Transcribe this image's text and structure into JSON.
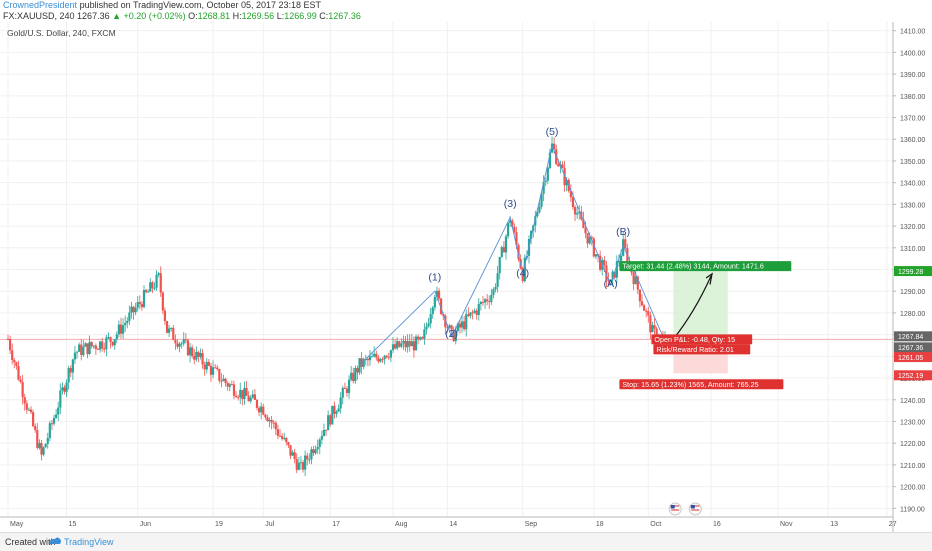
{
  "header": {
    "author": "CrownedPresident",
    "published_text": "published on TradingView.com, October 05, 2017 23:18 EST",
    "symbol": "FX:XAUUSD, 240",
    "last_price": "1267.36",
    "change": "▲ +0.20 (+0.02%)",
    "open_label": "O:",
    "open": "1268.81",
    "high_label": "H:",
    "high": "1269.56",
    "low_label": "L:",
    "low": "1266.99",
    "close_label": "C:",
    "close": "1267.36"
  },
  "chart_title": "Gold/U.S. Dollar, 240, FXCM",
  "footer": {
    "created_with": "Created with",
    "brand": "TradingView"
  },
  "colors": {
    "up": "#26a69a",
    "down": "#ef5350",
    "wave": "#5a8fd8",
    "accent": "#3a8fd4"
  },
  "chart_data": {
    "type": "candlestick",
    "ylim": [
      1186,
      1414
    ],
    "y_ticks": [
      1190,
      1200,
      1210,
      1220,
      1230,
      1240,
      1250,
      1260,
      1270,
      1280,
      1290,
      1300,
      1310,
      1320,
      1330,
      1340,
      1350,
      1360,
      1370,
      1380,
      1390,
      1400,
      1410
    ],
    "x_ticks": [
      "May",
      "15",
      "Jun",
      "19",
      "Jul",
      "17",
      "Aug",
      "14",
      "Sep",
      "18",
      "Oct",
      "16",
      "Nov",
      "13",
      "27"
    ],
    "price_path": [
      {
        "x": "May 1",
        "y": 1268
      },
      {
        "x": "May 9",
        "y": 1214
      },
      {
        "x": "May 17",
        "y": 1262
      },
      {
        "x": "May 26",
        "y": 1268
      },
      {
        "x": "Jun 6",
        "y": 1296
      },
      {
        "x": "Jun 8",
        "y": 1272
      },
      {
        "x": "Jun 22",
        "y": 1248
      },
      {
        "x": "Jul 1",
        "y": 1236
      },
      {
        "x": "Jul 10",
        "y": 1208
      },
      {
        "x": "Jul 24",
        "y": 1256
      },
      {
        "x": "Aug 3",
        "y": 1265
      },
      {
        "x": "Aug 8",
        "y": 1266
      },
      {
        "x": "Aug 11",
        "y": 1290
      },
      {
        "x": "Aug 15",
        "y": 1269
      },
      {
        "x": "Aug 25",
        "y": 1290
      },
      {
        "x": "Aug 29",
        "y": 1324
      },
      {
        "x": "Sep 1",
        "y": 1298
      },
      {
        "x": "Sep 8",
        "y": 1357
      },
      {
        "x": "Sep 15",
        "y": 1321
      },
      {
        "x": "Sep 22",
        "y": 1293
      },
      {
        "x": "Sep 25",
        "y": 1311
      },
      {
        "x": "Oct 2",
        "y": 1271
      },
      {
        "x": "Oct 5",
        "y": 1267
      }
    ],
    "wave_labels": [
      {
        "label": "(1)",
        "x": "Aug 11",
        "y": 1293
      },
      {
        "label": "(2)",
        "x": "Aug 15",
        "y": 1267
      },
      {
        "label": "(3)",
        "x": "Aug 29",
        "y": 1327
      },
      {
        "label": "(4)",
        "x": "Sep 1",
        "y": 1295
      },
      {
        "label": "(5)",
        "x": "Sep 8",
        "y": 1360
      },
      {
        "label": "(A)",
        "x": "Sep 22",
        "y": 1290
      },
      {
        "label": "(B)",
        "x": "Sep 25",
        "y": 1314
      },
      {
        "label": "(C)",
        "x": "Oct 5",
        "y": 1264
      }
    ],
    "position": {
      "entry": 1267.84,
      "target_price": 1299.28,
      "stop_price": 1252.19,
      "target_text": "Target: 31.44 (2.48%) 3144, Amount: 1471.6",
      "pnl_text": "Open P&L: -0.48, Qty: 15",
      "rr_text": "Risk/Reward Ratio: 2.01",
      "stop_text": "Stop: 15.65 (1.23%) 1565, Amount: 765.25"
    },
    "price_labels": [
      {
        "value": "1299.28",
        "color": "#22a32a"
      },
      {
        "value": "1267.84",
        "color": "#666666"
      },
      {
        "value": "1267.36",
        "color": "#666666"
      },
      {
        "value": "1261.05",
        "color": "#e84040"
      },
      {
        "value": "1252.19",
        "color": "#e84040"
      }
    ],
    "grid": true
  }
}
